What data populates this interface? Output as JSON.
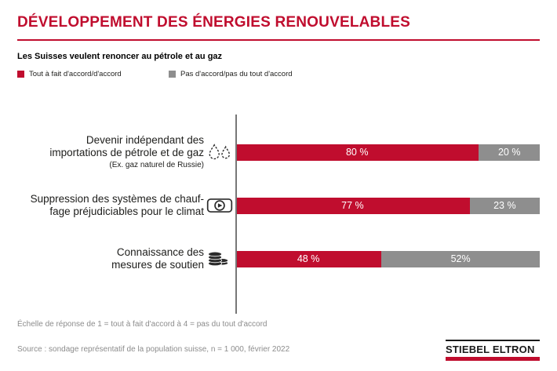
{
  "page": {
    "title": "DÉVELOPPEMENT DES ÉNERGIES RENOUVELABLES",
    "subtitle": "Les Suisses veulent renoncer au pétrole et au gaz"
  },
  "legend": [
    {
      "label": "Tout à fait d'accord/d'accord",
      "color": "#c00d2e"
    },
    {
      "label": "Pas d'accord/pas du tout d'accord",
      "color": "#8e8e8e"
    }
  ],
  "chart_data": {
    "type": "bar",
    "orientation": "horizontal",
    "stacked": true,
    "unit": "%",
    "xlim": [
      0,
      100
    ],
    "legend_position": "top",
    "categories": [
      "Devenir indépendant des importations de pétrole et de gaz",
      "Suppression des systèmes de chauffage préjudiciables pour le climat",
      "Connaissance des mesures de soutien"
    ],
    "categories_lines": [
      [
        "Devenir indépendant des",
        "importations de pétrole et de gaz"
      ],
      [
        "Suppression des systèmes de chauf-",
        "fage préjudiciables pour le climat"
      ],
      [
        "Connaissance des",
        "mesures de soutien"
      ]
    ],
    "category_notes": [
      "(Ex. gaz naturel de Russie)",
      "",
      ""
    ],
    "category_icons": [
      "gas-drops-icon",
      "heat-pump-icon",
      "coins-icon"
    ],
    "series": [
      {
        "name": "Tout à fait d'accord/d'accord",
        "color": "#c00d2e",
        "values": [
          80,
          77,
          48
        ]
      },
      {
        "name": "Pas d'accord/pas du tout d'accord",
        "color": "#8e8e8e",
        "values": [
          20,
          23,
          52
        ]
      }
    ],
    "value_labels": [
      [
        "80 %",
        "20 %"
      ],
      [
        "77 %",
        "23 %"
      ],
      [
        "48 %",
        "52%"
      ]
    ]
  },
  "footer": {
    "scale_note": "Échelle de réponse de 1 = tout à fait d'accord à 4 = pas du tout d'accord",
    "source": "Source : sondage représentatif de la population suisse, n = 1 000, février 2022"
  },
  "logo": {
    "text": "STIEBEL ELTRON"
  }
}
